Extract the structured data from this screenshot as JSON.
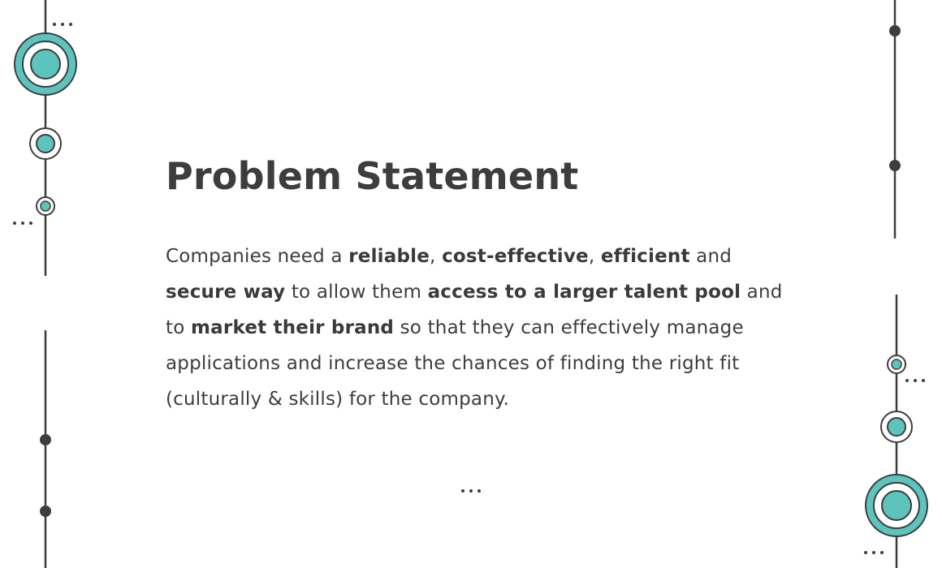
{
  "slide": {
    "title": "Problem Statement",
    "paragraph": [
      {
        "text": "Companies need a ",
        "bold": false
      },
      {
        "text": "reliable",
        "bold": true
      },
      {
        "text": ", ",
        "bold": false
      },
      {
        "text": "cost-effective",
        "bold": true
      },
      {
        "text": ", ",
        "bold": false
      },
      {
        "text": "efficient",
        "bold": true
      },
      {
        "text": " and ",
        "bold": false
      },
      {
        "text": "secure way",
        "bold": true
      },
      {
        "text": " to allow them ",
        "bold": false
      },
      {
        "text": "access to a larger talent pool",
        "bold": true
      },
      {
        "text": " and to ",
        "bold": false
      },
      {
        "text": "market their brand",
        "bold": true
      },
      {
        "text": " so that they can effectively manage applications and increase the chances of finding the right fit (culturally & skills) for the company.",
        "bold": false
      }
    ]
  },
  "colors": {
    "accent_teal": "#5cc4bd",
    "line_dark": "#3d3d3d",
    "background": "#ffffff"
  }
}
